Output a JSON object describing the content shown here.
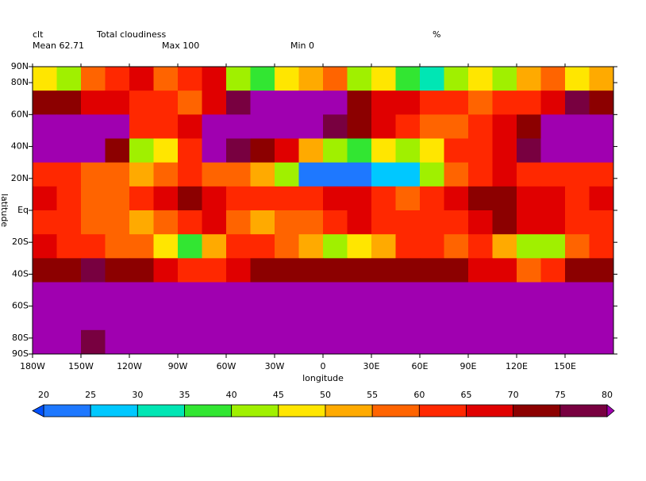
{
  "chart_data": {
    "type": "heatmap",
    "variable": "clt",
    "title": "Total cloudiness",
    "units": "%",
    "stats": [
      "Mean 62.71",
      "Max 100",
      "Min 0"
    ],
    "xlabel": "longitude",
    "ylabel": "latitude",
    "x": [
      -172.5,
      -157.5,
      -142.5,
      -127.5,
      -112.5,
      -97.5,
      -82.5,
      -67.5,
      -52.5,
      -37.5,
      -22.5,
      -7.5,
      7.5,
      22.5,
      37.5,
      52.5,
      67.5,
      82.5,
      97.5,
      112.5,
      127.5,
      142.5,
      157.5,
      172.5
    ],
    "y": [
      82.5,
      67.5,
      52.5,
      37.5,
      22.5,
      7.5,
      -7.5,
      -22.5,
      -37.5,
      -52.5,
      -67.5,
      -82.5
    ],
    "values": [
      [
        45,
        40,
        55,
        60,
        65,
        55,
        60,
        65,
        40,
        35,
        45,
        50,
        55,
        40,
        45,
        35,
        30,
        40,
        45,
        40,
        50,
        55,
        45,
        50
      ],
      [
        70,
        72,
        68,
        66,
        62,
        60,
        58,
        66,
        75,
        85,
        85,
        85,
        80,
        70,
        68,
        65,
        60,
        62,
        58,
        60,
        62,
        66,
        75,
        72
      ],
      [
        88,
        88,
        86,
        82,
        60,
        62,
        68,
        85,
        88,
        86,
        85,
        82,
        75,
        70,
        66,
        62,
        58,
        56,
        60,
        66,
        72,
        80,
        85,
        88
      ],
      [
        85,
        84,
        82,
        70,
        42,
        48,
        62,
        80,
        78,
        70,
        65,
        52,
        40,
        38,
        45,
        40,
        45,
        60,
        62,
        68,
        75,
        80,
        85,
        84
      ],
      [
        62,
        60,
        58,
        55,
        52,
        55,
        60,
        56,
        55,
        52,
        44,
        22,
        22,
        23,
        25,
        28,
        40,
        55,
        62,
        66,
        64,
        62,
        60,
        62
      ],
      [
        66,
        62,
        58,
        55,
        60,
        68,
        70,
        65,
        62,
        60,
        62,
        60,
        68,
        66,
        62,
        58,
        64,
        68,
        72,
        70,
        68,
        66,
        64,
        66
      ],
      [
        64,
        60,
        58,
        56,
        54,
        58,
        60,
        66,
        56,
        52,
        55,
        58,
        64,
        68,
        62,
        60,
        62,
        64,
        66,
        70,
        68,
        66,
        62,
        64
      ],
      [
        66,
        64,
        62,
        58,
        56,
        48,
        38,
        50,
        62,
        60,
        56,
        54,
        42,
        45,
        52,
        62,
        60,
        58,
        62,
        54,
        42,
        40,
        58,
        64
      ],
      [
        72,
        74,
        75,
        72,
        70,
        68,
        64,
        62,
        66,
        70,
        72,
        74,
        72,
        70,
        72,
        74,
        72,
        70,
        68,
        66,
        58,
        62,
        70,
        72
      ],
      [
        86,
        87,
        88,
        86,
        85,
        86,
        87,
        86,
        85,
        86,
        87,
        88,
        86,
        85,
        86,
        87,
        86,
        85,
        86,
        87,
        88,
        86,
        85,
        86
      ],
      [
        85,
        86,
        85,
        84,
        85,
        86,
        85,
        84,
        85,
        86,
        85,
        84,
        85,
        86,
        85,
        84,
        85,
        86,
        85,
        84,
        85,
        86,
        85,
        84
      ],
      [
        80,
        82,
        78,
        85,
        80,
        84,
        86,
        85,
        82,
        84,
        86,
        85,
        84,
        85,
        83,
        86,
        85,
        84,
        85,
        86,
        85,
        84,
        82,
        80
      ]
    ],
    "xlim": [
      -180,
      180
    ],
    "ylim": [
      -90,
      90
    ],
    "xticks": [
      {
        "value": -180,
        "label": "180W"
      },
      {
        "value": -150,
        "label": "150W"
      },
      {
        "value": -120,
        "label": "120W"
      },
      {
        "value": -90,
        "label": "90W"
      },
      {
        "value": -60,
        "label": "60W"
      },
      {
        "value": -30,
        "label": "30W"
      },
      0,
      {
        "value": 30,
        "label": "30E"
      },
      {
        "value": 60,
        "label": "60E"
      },
      {
        "value": 90,
        "label": "90E"
      },
      {
        "value": 120,
        "label": "120E"
      },
      {
        "value": 150,
        "label": "150E"
      }
    ],
    "yticks": [
      {
        "value": 90,
        "label": "90N"
      },
      {
        "value": 80,
        "label": "80N"
      },
      {
        "value": 60,
        "label": "60N"
      },
      {
        "value": 40,
        "label": "40N"
      },
      {
        "value": 20,
        "label": "20N"
      },
      {
        "value": 0,
        "label": "Eq"
      },
      {
        "value": -20,
        "label": "20S"
      },
      {
        "value": -40,
        "label": "40S"
      },
      {
        "value": -60,
        "label": "60S"
      },
      {
        "value": -80,
        "label": "80S"
      },
      {
        "value": -90,
        "label": "90S"
      }
    ],
    "colorbar": {
      "ticks": [
        20,
        25,
        30,
        35,
        40,
        45,
        50,
        55,
        60,
        65,
        70,
        75,
        80
      ],
      "colors": [
        "#1e78ff",
        "#00c8ff",
        "#00e6b4",
        "#32e632",
        "#a0f000",
        "#ffe600",
        "#ffaa00",
        "#ff6400",
        "#ff2800",
        "#e00000",
        "#8c0000",
        "#780040"
      ],
      "under_color": "#0050ff",
      "over_color": "#a000b0"
    }
  }
}
